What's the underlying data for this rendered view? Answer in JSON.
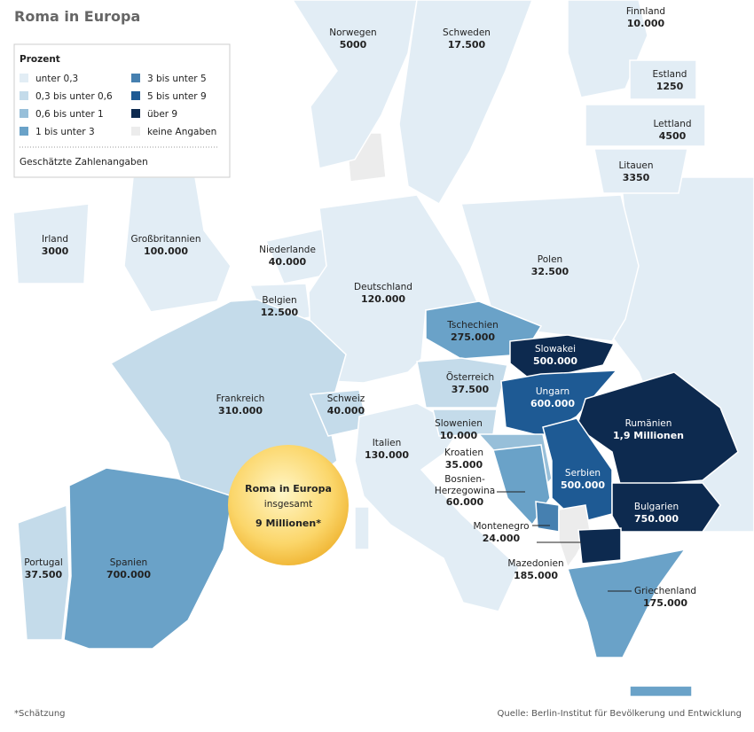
{
  "header": {
    "title": "Roma in Europa"
  },
  "legend": {
    "title": "Prozent",
    "items": [
      {
        "label": "unter 0,3",
        "color": "#e2edf5"
      },
      {
        "label": "0,3 bis unter 0,6",
        "color": "#c4dbea"
      },
      {
        "label": "0,6 bis unter 1",
        "color": "#97bfd9"
      },
      {
        "label": "1 bis unter 3",
        "color": "#6aa2c8"
      },
      {
        "label": "3 bis unter 5",
        "color": "#4680b0"
      },
      {
        "label": "5 bis unter 9",
        "color": "#1e5a94"
      },
      {
        "label": "über 9",
        "color": "#0d2a4f"
      },
      {
        "label": "keine Angaben",
        "color": "#ececec"
      }
    ],
    "note": "Geschätzte Zahlenangaben"
  },
  "countries": [
    {
      "name": "Norwegen",
      "value": "5000",
      "color": "#e2edf5"
    },
    {
      "name": "Schweden",
      "value": "17.500",
      "color": "#e2edf5"
    },
    {
      "name": "Finnland",
      "value": "10.000",
      "color": "#e2edf5"
    },
    {
      "name": "Estland",
      "value": "1250",
      "color": "#e2edf5"
    },
    {
      "name": "Lettland",
      "value": "4500",
      "color": "#e2edf5"
    },
    {
      "name": "Litauen",
      "value": "3350",
      "color": "#e2edf5"
    },
    {
      "name": "Irland",
      "value": "3000",
      "color": "#e2edf5"
    },
    {
      "name": "Großbritannien",
      "value": "100.000",
      "color": "#e2edf5"
    },
    {
      "name": "Niederlande",
      "value": "40.000",
      "color": "#e2edf5"
    },
    {
      "name": "Belgien",
      "value": "12.500",
      "color": "#e2edf5"
    },
    {
      "name": "Deutschland",
      "value": "120.000",
      "color": "#e2edf5"
    },
    {
      "name": "Polen",
      "value": "32.500",
      "color": "#e2edf5"
    },
    {
      "name": "Tschechien",
      "value": "275.000",
      "color": "#6aa2c8"
    },
    {
      "name": "Slowakei",
      "value": "500.000",
      "color": "#0d2a4f"
    },
    {
      "name": "Österreich",
      "value": "37.500",
      "color": "#c4dbea"
    },
    {
      "name": "Ungarn",
      "value": "600.000",
      "color": "#1e5a94"
    },
    {
      "name": "Frankreich",
      "value": "310.000",
      "color": "#c4dbea"
    },
    {
      "name": "Schweiz",
      "value": "40.000",
      "color": "#c4dbea"
    },
    {
      "name": "Italien",
      "value": "130.000",
      "color": "#e2edf5"
    },
    {
      "name": "Slowenien",
      "value": "10.000",
      "color": "#c4dbea"
    },
    {
      "name": "Kroatien",
      "value": "35.000",
      "color": "#97bfd9"
    },
    {
      "name": "Rumänien",
      "value": "1,9 Millionen",
      "color": "#0d2a4f"
    },
    {
      "name": "Serbien",
      "value": "500.000",
      "color": "#1e5a94"
    },
    {
      "name": "Bosnien-Herzegowina",
      "value": "60.000",
      "color": "#6aa2c8"
    },
    {
      "name": "Bulgarien",
      "value": "750.000",
      "color": "#0d2a4f"
    },
    {
      "name": "Montenegro",
      "value": "24.000",
      "color": "#4680b0"
    },
    {
      "name": "Portugal",
      "value": "37.500",
      "color": "#c4dbea"
    },
    {
      "name": "Spanien",
      "value": "700.000",
      "color": "#6aa2c8"
    },
    {
      "name": "Mazedonien",
      "value": "185.000",
      "color": "#0d2a4f"
    },
    {
      "name": "Griechenland",
      "value": "175.000",
      "color": "#6aa2c8"
    }
  ],
  "callout": {
    "title": "Roma in Europa",
    "subtitle": "insgesamt",
    "total": "9 Millionen*"
  },
  "footer": {
    "footnote": "*Schätzung",
    "source": "Quelle: Berlin-Institut für Bevölkerung und Entwicklung"
  }
}
